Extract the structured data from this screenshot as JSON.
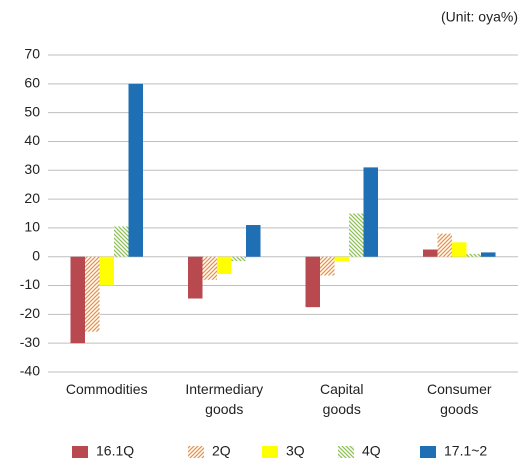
{
  "chart_data": {
    "type": "bar",
    "unit_label": "(Unit: oya%)",
    "categories": [
      "Commodities",
      "Intermediary goods",
      "Capital goods",
      "Consumer goods"
    ],
    "series": [
      {
        "name": "16.1Q",
        "color": "#b84a4f",
        "values": [
          -30,
          -14.5,
          -17.5,
          2.5
        ]
      },
      {
        "name": "2Q",
        "color": "#e8914a",
        "hatch": "/",
        "values": [
          -26,
          -8,
          -6.5,
          8
        ]
      },
      {
        "name": "3Q",
        "color": "#ffff00",
        "values": [
          -10,
          -6,
          -1.5,
          5
        ]
      },
      {
        "name": "4Q",
        "color": "#8fbf5a",
        "hatch": "\\",
        "values": [
          10.5,
          -1.5,
          15,
          1
        ]
      },
      {
        "name": "17.1~2",
        "color": "#1f6fb5",
        "values": [
          60,
          11,
          31,
          1.5
        ]
      }
    ],
    "ylim": [
      -40,
      70
    ],
    "yticks": [
      -40,
      -30,
      -20,
      -10,
      0,
      10,
      20,
      30,
      40,
      50,
      60,
      70
    ],
    "grid": true
  }
}
